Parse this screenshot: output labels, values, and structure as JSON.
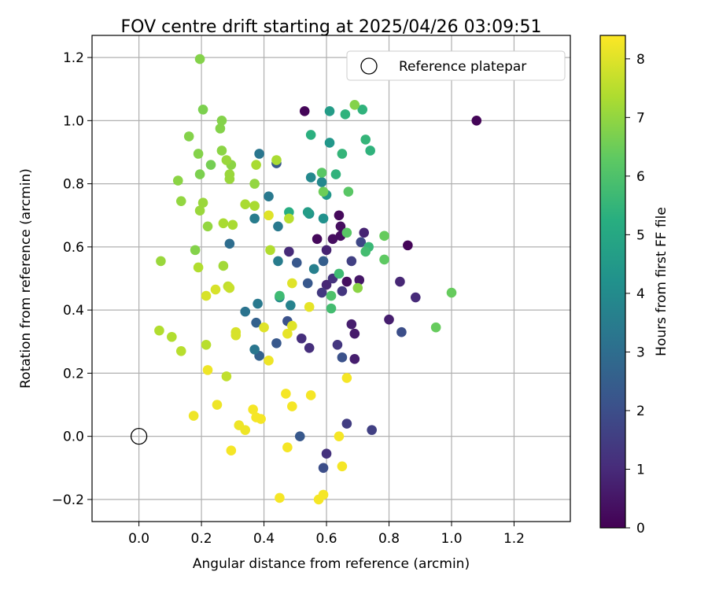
{
  "chart_data": {
    "type": "scatter",
    "title": "FOV centre drift starting at 2025/04/26 03:09:51",
    "xlabel": "Angular distance from reference (arcmin)",
    "ylabel": "Rotation from reference (arcmin)",
    "xlim": [
      -0.15,
      1.38
    ],
    "ylim": [
      -0.27,
      1.27
    ],
    "xticks": [
      0.0,
      0.2,
      0.4,
      0.6,
      0.8,
      1.0,
      1.2
    ],
    "xtick_labels": [
      "0.0",
      "0.2",
      "0.4",
      "0.6",
      "0.8",
      "1.0",
      "1.2"
    ],
    "yticks": [
      -0.2,
      0.0,
      0.2,
      0.4,
      0.6,
      0.8,
      1.0,
      1.2
    ],
    "ytick_labels": [
      "−0.2",
      "0.0",
      "0.2",
      "0.4",
      "0.6",
      "0.8",
      "1.0",
      "1.2"
    ],
    "grid": true,
    "legend": {
      "placement": "top-right",
      "entries": [
        "Reference platepar"
      ]
    },
    "reference": {
      "x": 0.0,
      "y": 0.0
    },
    "colorbar": {
      "label": "Hours from first FF file",
      "range": [
        0,
        8.4
      ],
      "ticks": [
        0,
        1,
        2,
        3,
        4,
        5,
        6,
        7,
        8
      ],
      "tick_labels": [
        "0",
        "1",
        "2",
        "3",
        "4",
        "5",
        "6",
        "7",
        "8"
      ],
      "colormap": "viridis"
    },
    "points": [
      {
        "x": 0.53,
        "y": 1.03,
        "h": 0.1
      },
      {
        "x": 1.08,
        "y": 1.0,
        "h": 0.1
      },
      {
        "x": 0.86,
        "y": 0.605,
        "h": 0.1
      },
      {
        "x": 0.57,
        "y": 0.625,
        "h": 0.2
      },
      {
        "x": 0.64,
        "y": 0.7,
        "h": 0.2
      },
      {
        "x": 0.645,
        "y": 0.665,
        "h": 0.3
      },
      {
        "x": 0.645,
        "y": 0.635,
        "h": 0.3
      },
      {
        "x": 0.62,
        "y": 0.625,
        "h": 0.3
      },
      {
        "x": 0.665,
        "y": 0.49,
        "h": 0.3
      },
      {
        "x": 0.705,
        "y": 0.495,
        "h": 0.5
      },
      {
        "x": 0.72,
        "y": 0.645,
        "h": 0.8
      },
      {
        "x": 0.6,
        "y": 0.59,
        "h": 0.8
      },
      {
        "x": 0.68,
        "y": 0.355,
        "h": 0.7
      },
      {
        "x": 0.69,
        "y": 0.325,
        "h": 0.6
      },
      {
        "x": 0.69,
        "y": 0.245,
        "h": 0.7
      },
      {
        "x": 0.8,
        "y": 0.37,
        "h": 0.7
      },
      {
        "x": 0.835,
        "y": 0.49,
        "h": 0.9
      },
      {
        "x": 0.885,
        "y": 0.44,
        "h": 1.0
      },
      {
        "x": 0.48,
        "y": 0.585,
        "h": 1.0
      },
      {
        "x": 0.6,
        "y": 0.48,
        "h": 0.9
      },
      {
        "x": 0.62,
        "y": 0.5,
        "h": 1.2
      },
      {
        "x": 0.65,
        "y": 0.46,
        "h": 1.3
      },
      {
        "x": 0.545,
        "y": 0.28,
        "h": 1.1
      },
      {
        "x": 0.52,
        "y": 0.31,
        "h": 1.1
      },
      {
        "x": 0.635,
        "y": 0.29,
        "h": 1.3
      },
      {
        "x": 0.6,
        "y": -0.055,
        "h": 1.2
      },
      {
        "x": 0.665,
        "y": 0.04,
        "h": 1.5
      },
      {
        "x": 0.745,
        "y": 0.02,
        "h": 1.6
      },
      {
        "x": 0.585,
        "y": 0.455,
        "h": 1.4
      },
      {
        "x": 0.68,
        "y": 0.555,
        "h": 1.6
      },
      {
        "x": 0.71,
        "y": 0.615,
        "h": 1.8
      },
      {
        "x": 0.84,
        "y": 0.33,
        "h": 2.0
      },
      {
        "x": 0.65,
        "y": 0.25,
        "h": 2.1
      },
      {
        "x": 0.59,
        "y": -0.1,
        "h": 2.0
      },
      {
        "x": 0.515,
        "y": 0.0,
        "h": 2.3
      },
      {
        "x": 0.475,
        "y": 0.365,
        "h": 2.1
      },
      {
        "x": 0.44,
        "y": 0.295,
        "h": 2.3
      },
      {
        "x": 0.505,
        "y": 0.55,
        "h": 2.3
      },
      {
        "x": 0.54,
        "y": 0.485,
        "h": 2.3
      },
      {
        "x": 0.59,
        "y": 0.555,
        "h": 2.5
      },
      {
        "x": 0.44,
        "y": 0.865,
        "h": 2.3
      },
      {
        "x": 0.385,
        "y": 0.255,
        "h": 2.6
      },
      {
        "x": 0.375,
        "y": 0.36,
        "h": 2.6
      },
      {
        "x": 0.29,
        "y": 0.61,
        "h": 3.0
      },
      {
        "x": 0.34,
        "y": 0.395,
        "h": 3.2
      },
      {
        "x": 0.37,
        "y": 0.275,
        "h": 3.3
      },
      {
        "x": 0.38,
        "y": 0.42,
        "h": 3.4
      },
      {
        "x": 0.445,
        "y": 0.665,
        "h": 3.4
      },
      {
        "x": 0.445,
        "y": 0.555,
        "h": 3.5
      },
      {
        "x": 0.415,
        "y": 0.76,
        "h": 3.4
      },
      {
        "x": 0.37,
        "y": 0.69,
        "h": 3.5
      },
      {
        "x": 0.385,
        "y": 0.895,
        "h": 3.3
      },
      {
        "x": 0.485,
        "y": 0.415,
        "h": 3.7
      },
      {
        "x": 0.56,
        "y": 0.53,
        "h": 3.6
      },
      {
        "x": 0.45,
        "y": 0.44,
        "h": 3.9
      },
      {
        "x": 0.55,
        "y": 0.82,
        "h": 3.9
      },
      {
        "x": 0.585,
        "y": 0.805,
        "h": 3.9
      },
      {
        "x": 0.59,
        "y": 0.69,
        "h": 4.2
      },
      {
        "x": 0.545,
        "y": 0.705,
        "h": 4.3
      },
      {
        "x": 0.54,
        "y": 0.71,
        "h": 4.6
      },
      {
        "x": 0.6,
        "y": 0.765,
        "h": 4.4
      },
      {
        "x": 0.61,
        "y": 0.93,
        "h": 4.4
      },
      {
        "x": 0.61,
        "y": 1.03,
        "h": 4.6
      },
      {
        "x": 0.66,
        "y": 1.02,
        "h": 5.4
      },
      {
        "x": 0.715,
        "y": 1.035,
        "h": 5.4
      },
      {
        "x": 0.725,
        "y": 0.94,
        "h": 5.5
      },
      {
        "x": 0.74,
        "y": 0.905,
        "h": 5.4
      },
      {
        "x": 0.65,
        "y": 0.895,
        "h": 5.5
      },
      {
        "x": 0.63,
        "y": 0.83,
        "h": 5.4
      },
      {
        "x": 0.55,
        "y": 0.955,
        "h": 5.3
      },
      {
        "x": 0.48,
        "y": 0.71,
        "h": 5.2
      },
      {
        "x": 0.45,
        "y": 0.445,
        "h": 5.7
      },
      {
        "x": 0.64,
        "y": 0.515,
        "h": 5.7
      },
      {
        "x": 0.615,
        "y": 0.405,
        "h": 5.8
      },
      {
        "x": 0.615,
        "y": 0.445,
        "h": 6.0
      },
      {
        "x": 0.735,
        "y": 0.6,
        "h": 5.6
      },
      {
        "x": 0.725,
        "y": 0.585,
        "h": 5.8
      },
      {
        "x": 0.785,
        "y": 0.56,
        "h": 6.3
      },
      {
        "x": 0.785,
        "y": 0.635,
        "h": 6.4
      },
      {
        "x": 1.0,
        "y": 0.455,
        "h": 6.4
      },
      {
        "x": 0.95,
        "y": 0.345,
        "h": 6.4
      },
      {
        "x": 0.665,
        "y": 0.645,
        "h": 6.2
      },
      {
        "x": 0.67,
        "y": 0.775,
        "h": 6.2
      },
      {
        "x": 0.585,
        "y": 0.835,
        "h": 6.2
      },
      {
        "x": 0.59,
        "y": 0.775,
        "h": 6.5
      },
      {
        "x": 0.7,
        "y": 0.47,
        "h": 6.9
      },
      {
        "x": 0.69,
        "y": 1.05,
        "h": 6.8
      },
      {
        "x": 0.205,
        "y": 1.035,
        "h": 6.7
      },
      {
        "x": 0.195,
        "y": 1.195,
        "h": 6.8
      },
      {
        "x": 0.16,
        "y": 0.95,
        "h": 6.8
      },
      {
        "x": 0.19,
        "y": 0.895,
        "h": 6.8
      },
      {
        "x": 0.265,
        "y": 1.0,
        "h": 6.8
      },
      {
        "x": 0.26,
        "y": 0.975,
        "h": 6.8
      },
      {
        "x": 0.23,
        "y": 0.86,
        "h": 6.6
      },
      {
        "x": 0.265,
        "y": 0.905,
        "h": 6.9
      },
      {
        "x": 0.295,
        "y": 0.86,
        "h": 6.9
      },
      {
        "x": 0.28,
        "y": 0.875,
        "h": 7.1
      },
      {
        "x": 0.29,
        "y": 0.83,
        "h": 7.1
      },
      {
        "x": 0.29,
        "y": 0.815,
        "h": 7.1
      },
      {
        "x": 0.195,
        "y": 0.83,
        "h": 6.7
      },
      {
        "x": 0.125,
        "y": 0.81,
        "h": 6.9
      },
      {
        "x": 0.135,
        "y": 0.745,
        "h": 7.0
      },
      {
        "x": 0.205,
        "y": 0.74,
        "h": 7.1
      },
      {
        "x": 0.195,
        "y": 0.715,
        "h": 7.1
      },
      {
        "x": 0.22,
        "y": 0.665,
        "h": 7.0
      },
      {
        "x": 0.18,
        "y": 0.59,
        "h": 6.8
      },
      {
        "x": 0.07,
        "y": 0.555,
        "h": 7.1
      },
      {
        "x": 0.19,
        "y": 0.535,
        "h": 7.4
      },
      {
        "x": 0.27,
        "y": 0.54,
        "h": 7.2
      },
      {
        "x": 0.27,
        "y": 0.675,
        "h": 7.3
      },
      {
        "x": 0.3,
        "y": 0.67,
        "h": 7.3
      },
      {
        "x": 0.37,
        "y": 0.8,
        "h": 7.0
      },
      {
        "x": 0.37,
        "y": 0.73,
        "h": 7.3
      },
      {
        "x": 0.34,
        "y": 0.735,
        "h": 7.3
      },
      {
        "x": 0.375,
        "y": 0.86,
        "h": 7.3
      },
      {
        "x": 0.44,
        "y": 0.875,
        "h": 7.3
      },
      {
        "x": 0.42,
        "y": 0.59,
        "h": 7.4
      },
      {
        "x": 0.48,
        "y": 0.69,
        "h": 7.5
      },
      {
        "x": 0.065,
        "y": 0.335,
        "h": 7.4
      },
      {
        "x": 0.105,
        "y": 0.315,
        "h": 7.4
      },
      {
        "x": 0.135,
        "y": 0.27,
        "h": 7.5
      },
      {
        "x": 0.215,
        "y": 0.29,
        "h": 7.5
      },
      {
        "x": 0.28,
        "y": 0.19,
        "h": 7.6
      },
      {
        "x": 0.285,
        "y": 0.475,
        "h": 7.6
      },
      {
        "x": 0.29,
        "y": 0.47,
        "h": 7.7
      },
      {
        "x": 0.215,
        "y": 0.445,
        "h": 7.9
      },
      {
        "x": 0.245,
        "y": 0.465,
        "h": 7.9
      },
      {
        "x": 0.31,
        "y": 0.33,
        "h": 7.9
      },
      {
        "x": 0.31,
        "y": 0.32,
        "h": 7.9
      },
      {
        "x": 0.4,
        "y": 0.345,
        "h": 8.0
      },
      {
        "x": 0.415,
        "y": 0.7,
        "h": 8.0
      },
      {
        "x": 0.49,
        "y": 0.485,
        "h": 8.0
      },
      {
        "x": 0.49,
        "y": 0.35,
        "h": 8.0
      },
      {
        "x": 0.475,
        "y": 0.325,
        "h": 8.1
      },
      {
        "x": 0.545,
        "y": 0.41,
        "h": 8.1
      },
      {
        "x": 0.415,
        "y": 0.24,
        "h": 8.2
      },
      {
        "x": 0.22,
        "y": 0.21,
        "h": 8.2
      },
      {
        "x": 0.25,
        "y": 0.1,
        "h": 8.2
      },
      {
        "x": 0.175,
        "y": 0.065,
        "h": 8.2
      },
      {
        "x": 0.32,
        "y": 0.035,
        "h": 8.2
      },
      {
        "x": 0.34,
        "y": 0.02,
        "h": 8.2
      },
      {
        "x": 0.295,
        "y": -0.045,
        "h": 8.3
      },
      {
        "x": 0.365,
        "y": 0.085,
        "h": 8.3
      },
      {
        "x": 0.375,
        "y": 0.06,
        "h": 8.3
      },
      {
        "x": 0.39,
        "y": 0.055,
        "h": 8.3
      },
      {
        "x": 0.47,
        "y": 0.135,
        "h": 8.3
      },
      {
        "x": 0.49,
        "y": 0.095,
        "h": 8.3
      },
      {
        "x": 0.55,
        "y": 0.13,
        "h": 8.3
      },
      {
        "x": 0.475,
        "y": -0.035,
        "h": 8.3
      },
      {
        "x": 0.45,
        "y": -0.195,
        "h": 8.3
      },
      {
        "x": 0.575,
        "y": -0.2,
        "h": 8.3
      },
      {
        "x": 0.59,
        "y": -0.185,
        "h": 8.3
      },
      {
        "x": 0.64,
        "y": 0.0,
        "h": 8.3
      },
      {
        "x": 0.65,
        "y": -0.095,
        "h": 8.3
      },
      {
        "x": 0.665,
        "y": 0.185,
        "h": 8.3
      }
    ]
  }
}
